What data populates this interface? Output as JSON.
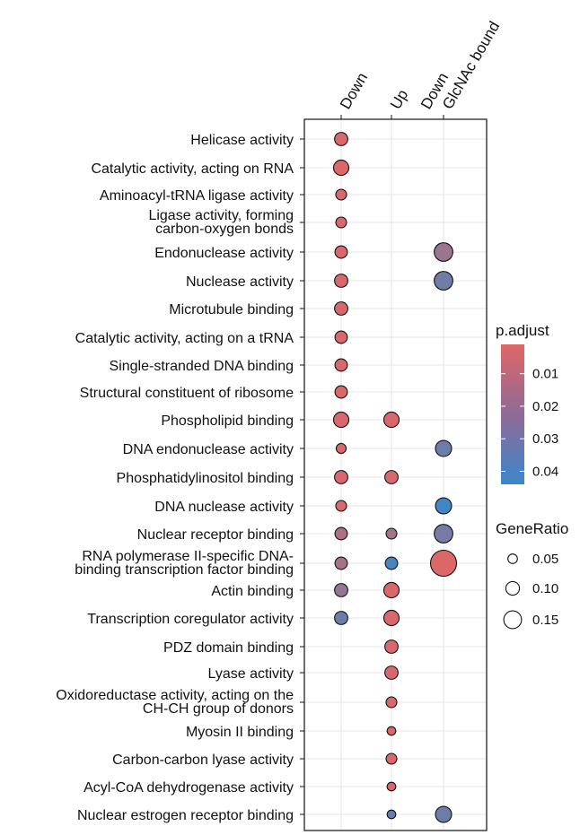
{
  "chart_data": {
    "type": "scatter",
    "subtype": "dot-plot",
    "x_categories": [
      "Down",
      "Up",
      "Down\nGlcNAc bound"
    ],
    "terms": [
      "Helicase activity",
      "Catalytic activity, acting on RNA",
      "Aminoacyl-tRNA ligase activity",
      "Ligase activity, forming\ncarbon-oxygen bonds",
      "Endonuclease activity",
      "Nuclease activity",
      "Microtubule binding",
      "Catalytic activity, acting on a tRNA",
      "Single-stranded DNA binding",
      "Structural constituent of ribosome",
      "Phospholipid binding",
      "DNA endonuclease activity",
      "Phosphatidylinositol binding",
      "DNA nuclease activity",
      "Nuclear receptor binding",
      "RNA polymerase II-specific DNA-\nbinding transcription factor binding",
      "Actin binding",
      "Transcription coregulator activity",
      "PDZ domain binding",
      "Lyase activity",
      "Oxidoreductase activity, acting on the\nCH-CH group of donors",
      "Myosin II binding",
      "Carbon-carbon lyase activity",
      "Acyl-CoA dehydrogenase activity",
      "Nuclear estrogen receptor binding"
    ],
    "points": [
      {
        "term": "Helicase activity",
        "group": "Down",
        "gene_ratio": 0.095,
        "p_adjust": 0.003
      },
      {
        "term": "Catalytic activity, acting on RNA",
        "group": "Down",
        "gene_ratio": 0.12,
        "p_adjust": 0.002
      },
      {
        "term": "Aminoacyl-tRNA ligase activity",
        "group": "Down",
        "gene_ratio": 0.065,
        "p_adjust": 0.003
      },
      {
        "term": "Ligase activity, forming\ncarbon-oxygen bonds",
        "group": "Down",
        "gene_ratio": 0.065,
        "p_adjust": 0.003
      },
      {
        "term": "Endonuclease activity",
        "group": "Down",
        "gene_ratio": 0.085,
        "p_adjust": 0.003
      },
      {
        "term": "Nuclease activity",
        "group": "Down",
        "gene_ratio": 0.095,
        "p_adjust": 0.003
      },
      {
        "term": "Microtubule binding",
        "group": "Down",
        "gene_ratio": 0.095,
        "p_adjust": 0.003
      },
      {
        "term": "Catalytic activity, acting on a tRNA",
        "group": "Down",
        "gene_ratio": 0.085,
        "p_adjust": 0.003
      },
      {
        "term": "Single-stranded DNA binding",
        "group": "Down",
        "gene_ratio": 0.085,
        "p_adjust": 0.003
      },
      {
        "term": "Structural constituent of ribosome",
        "group": "Down",
        "gene_ratio": 0.085,
        "p_adjust": 0.003
      },
      {
        "term": "Phospholipid binding",
        "group": "Down",
        "gene_ratio": 0.12,
        "p_adjust": 0.003
      },
      {
        "term": "DNA endonuclease activity",
        "group": "Down",
        "gene_ratio": 0.055,
        "p_adjust": 0.003
      },
      {
        "term": "Phosphatidylinositol binding",
        "group": "Down",
        "gene_ratio": 0.095,
        "p_adjust": 0.003
      },
      {
        "term": "DNA nuclease activity",
        "group": "Down",
        "gene_ratio": 0.065,
        "p_adjust": 0.003
      },
      {
        "term": "Nuclear receptor binding",
        "group": "Down",
        "gene_ratio": 0.085,
        "p_adjust": 0.014
      },
      {
        "term": "RNA polymerase II-specific DNA-\nbinding transcription factor binding",
        "group": "Down",
        "gene_ratio": 0.085,
        "p_adjust": 0.016
      },
      {
        "term": "Actin binding",
        "group": "Down",
        "gene_ratio": 0.095,
        "p_adjust": 0.021
      },
      {
        "term": "Transcription coregulator activity",
        "group": "Down",
        "gene_ratio": 0.095,
        "p_adjust": 0.031
      },
      {
        "term": "Phospholipid binding",
        "group": "Up",
        "gene_ratio": 0.12,
        "p_adjust": 0.003
      },
      {
        "term": "Phosphatidylinositol binding",
        "group": "Up",
        "gene_ratio": 0.095,
        "p_adjust": 0.003
      },
      {
        "term": "Nuclear receptor binding",
        "group": "Up",
        "gene_ratio": 0.065,
        "p_adjust": 0.016
      },
      {
        "term": "RNA polymerase II-specific DNA-\nbinding transcription factor binding",
        "group": "Up",
        "gene_ratio": 0.085,
        "p_adjust": 0.04
      },
      {
        "term": "Actin binding",
        "group": "Up",
        "gene_ratio": 0.12,
        "p_adjust": 0.003
      },
      {
        "term": "Transcription coregulator activity",
        "group": "Up",
        "gene_ratio": 0.12,
        "p_adjust": 0.003
      },
      {
        "term": "PDZ domain binding",
        "group": "Up",
        "gene_ratio": 0.095,
        "p_adjust": 0.003
      },
      {
        "term": "Lyase activity",
        "group": "Up",
        "gene_ratio": 0.095,
        "p_adjust": 0.003
      },
      {
        "term": "Oxidoreductase activity, acting on the\nCH-CH group of donors",
        "group": "Up",
        "gene_ratio": 0.065,
        "p_adjust": 0.003
      },
      {
        "term": "Myosin II binding",
        "group": "Up",
        "gene_ratio": 0.04,
        "p_adjust": 0.003
      },
      {
        "term": "Carbon-carbon lyase activity",
        "group": "Up",
        "gene_ratio": 0.065,
        "p_adjust": 0.003
      },
      {
        "term": "Acyl-CoA dehydrogenase activity",
        "group": "Up",
        "gene_ratio": 0.04,
        "p_adjust": 0.003
      },
      {
        "term": "Nuclear estrogen receptor binding",
        "group": "Up",
        "gene_ratio": 0.04,
        "p_adjust": 0.033
      },
      {
        "term": "Endonuclease activity",
        "group": "Down\nGlcNAc bound",
        "gene_ratio": 0.16,
        "p_adjust": 0.019
      },
      {
        "term": "Nuclease activity",
        "group": "Down\nGlcNAc bound",
        "gene_ratio": 0.16,
        "p_adjust": 0.03
      },
      {
        "term": "DNA endonuclease activity",
        "group": "Down\nGlcNAc bound",
        "gene_ratio": 0.13,
        "p_adjust": 0.031
      },
      {
        "term": "DNA nuclease activity",
        "group": "Down\nGlcNAc bound",
        "gene_ratio": 0.13,
        "p_adjust": 0.042
      },
      {
        "term": "Nuclear receptor binding",
        "group": "Down\nGlcNAc bound",
        "gene_ratio": 0.16,
        "p_adjust": 0.028
      },
      {
        "term": "RNA polymerase II-specific DNA-\nbinding transcription factor binding",
        "group": "Down\nGlcNAc bound",
        "gene_ratio": 0.25,
        "p_adjust": 0.002
      },
      {
        "term": "Nuclear estrogen receptor binding",
        "group": "Down\nGlcNAc bound",
        "gene_ratio": 0.13,
        "p_adjust": 0.031
      }
    ],
    "color_legend": {
      "title": "p.adjust",
      "ticks": [
        "0.01",
        "0.02",
        "0.03",
        "0.04"
      ],
      "tick_values": [
        0.01,
        0.02,
        0.03,
        0.04
      ],
      "range": [
        0.001,
        0.044
      ],
      "low_color": "#e06666",
      "high_color": "#3a87c8"
    },
    "size_legend": {
      "title": "GeneRatio",
      "ticks": [
        "0.05",
        "0.10",
        "0.15"
      ],
      "tick_values": [
        0.05,
        0.1,
        0.15
      ]
    },
    "grid": true,
    "legend_position": "right"
  }
}
